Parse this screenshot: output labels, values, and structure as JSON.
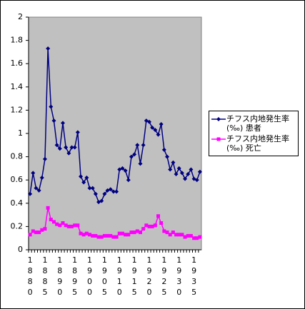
{
  "chart_data": {
    "type": "line",
    "categories": [
      "1880",
      null,
      null,
      null,
      null,
      "1885",
      null,
      null,
      null,
      null,
      "1890",
      null,
      null,
      null,
      null,
      "1895",
      null,
      null,
      null,
      null,
      "1900",
      null,
      null,
      null,
      null,
      "1905",
      null,
      null,
      null,
      null,
      "1910",
      null,
      null,
      null,
      null,
      "1915",
      null,
      null,
      null,
      null,
      "1920",
      null,
      null,
      null,
      null,
      "1925",
      null,
      null,
      null,
      null,
      "1930",
      null,
      null,
      null,
      null,
      "1935",
      null,
      null
    ],
    "series": [
      {
        "name": "チフス内地発生率(‰) 患者",
        "color": "#000080",
        "marker": "diamond",
        "values": [
          0.48,
          0.66,
          0.53,
          0.51,
          0.62,
          0.78,
          1.73,
          1.23,
          1.11,
          0.9,
          0.87,
          1.09,
          0.88,
          0.83,
          0.88,
          0.88,
          1.01,
          0.63,
          0.58,
          0.62,
          0.53,
          0.53,
          0.48,
          0.41,
          0.42,
          0.48,
          0.51,
          0.52,
          0.5,
          0.5,
          0.69,
          0.7,
          0.68,
          0.6,
          0.8,
          0.82,
          0.9,
          0.74,
          0.9,
          1.11,
          1.1,
          1.05,
          1.03,
          0.99,
          1.08,
          0.86,
          0.8,
          0.69,
          0.75,
          0.65,
          0.7,
          0.66,
          0.61,
          0.65,
          0.69,
          0.61,
          0.6,
          0.67
        ]
      },
      {
        "name": "チフス内地発生率(‰) 死亡",
        "color": "#ff00ff",
        "marker": "square",
        "values": [
          0.13,
          0.16,
          0.15,
          0.15,
          0.17,
          0.18,
          0.36,
          0.26,
          0.24,
          0.22,
          0.21,
          0.23,
          0.21,
          0.2,
          0.2,
          0.21,
          0.21,
          0.14,
          0.13,
          0.14,
          0.13,
          0.12,
          0.12,
          0.11,
          0.11,
          0.12,
          0.12,
          0.12,
          0.11,
          0.11,
          0.14,
          0.14,
          0.13,
          0.13,
          0.15,
          0.15,
          0.16,
          0.15,
          0.18,
          0.21,
          0.2,
          0.2,
          0.21,
          0.29,
          0.23,
          0.16,
          0.15,
          0.13,
          0.15,
          0.13,
          0.13,
          0.13,
          0.11,
          0.12,
          0.12,
          0.1,
          0.1,
          0.11
        ]
      }
    ],
    "ylim": [
      0,
      2
    ],
    "yticks": [
      0,
      0.2,
      0.4,
      0.6,
      0.8,
      1,
      1.2,
      1.4,
      1.6,
      1.8,
      2
    ],
    "grid": false,
    "plot_background": "#c0c0c0",
    "legend": "right"
  }
}
